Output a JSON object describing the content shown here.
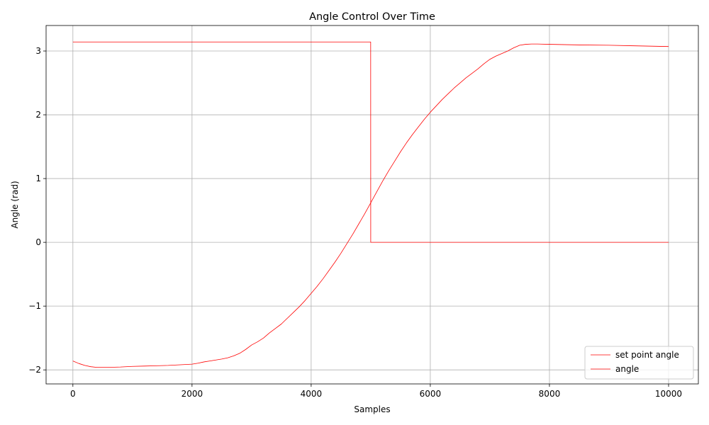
{
  "chart_data": {
    "type": "line",
    "title": "Angle Control Over Time",
    "xlabel": "Samples",
    "ylabel": "Angle (rad)",
    "xlim": [
      -450,
      10500
    ],
    "ylim": [
      -2.22,
      3.4
    ],
    "xticks": [
      0,
      2000,
      4000,
      6000,
      8000,
      10000
    ],
    "xtick_labels": [
      "0",
      "2000",
      "4000",
      "6000",
      "8000",
      "10000"
    ],
    "yticks": [
      -2,
      -1,
      0,
      1,
      2,
      3
    ],
    "ytick_labels": [
      "−2",
      "−1",
      "0",
      "1",
      "2",
      "3"
    ],
    "grid": true,
    "legend_position": "lower-right",
    "series": [
      {
        "name": "set point angle",
        "color": "#ff0000",
        "x": [
          0,
          4999,
          5000,
          10000
        ],
        "y": [
          3.1416,
          3.1416,
          0,
          0
        ]
      },
      {
        "name": "angle",
        "color": "#ff0000",
        "x": [
          0,
          100,
          200,
          300,
          400,
          600,
          800,
          1000,
          1200,
          1400,
          1600,
          1800,
          2000,
          2100,
          2200,
          2300,
          2400,
          2500,
          2600,
          2700,
          2800,
          2900,
          3000,
          3100,
          3200,
          3300,
          3400,
          3500,
          3600,
          3700,
          3800,
          3900,
          4000,
          4100,
          4200,
          4300,
          4400,
          4500,
          4600,
          4700,
          4800,
          4900,
          5000,
          5100,
          5200,
          5300,
          5400,
          5500,
          5600,
          5700,
          5800,
          5900,
          6000,
          6100,
          6200,
          6300,
          6400,
          6500,
          6600,
          6700,
          6800,
          6900,
          7000,
          7100,
          7200,
          7300,
          7400,
          7500,
          7600,
          7700,
          7800,
          8000,
          8500,
          9000,
          9500,
          10000
        ],
        "y": [
          -1.86,
          -1.9,
          -1.93,
          -1.95,
          -1.96,
          -1.96,
          -1.955,
          -1.945,
          -1.94,
          -1.935,
          -1.93,
          -1.92,
          -1.91,
          -1.895,
          -1.875,
          -1.86,
          -1.845,
          -1.83,
          -1.81,
          -1.78,
          -1.74,
          -1.68,
          -1.61,
          -1.56,
          -1.5,
          -1.42,
          -1.35,
          -1.28,
          -1.19,
          -1.1,
          -1.01,
          -0.91,
          -0.8,
          -0.69,
          -0.57,
          -0.44,
          -0.31,
          -0.17,
          -0.02,
          0.13,
          0.29,
          0.45,
          0.62,
          0.79,
          0.96,
          1.12,
          1.27,
          1.42,
          1.56,
          1.69,
          1.81,
          1.93,
          2.04,
          2.14,
          2.24,
          2.33,
          2.42,
          2.5,
          2.58,
          2.65,
          2.72,
          2.8,
          2.87,
          2.92,
          2.96,
          3.0,
          3.05,
          3.09,
          3.105,
          3.11,
          3.11,
          3.105,
          3.095,
          3.09,
          3.08,
          3.07
        ]
      }
    ]
  }
}
